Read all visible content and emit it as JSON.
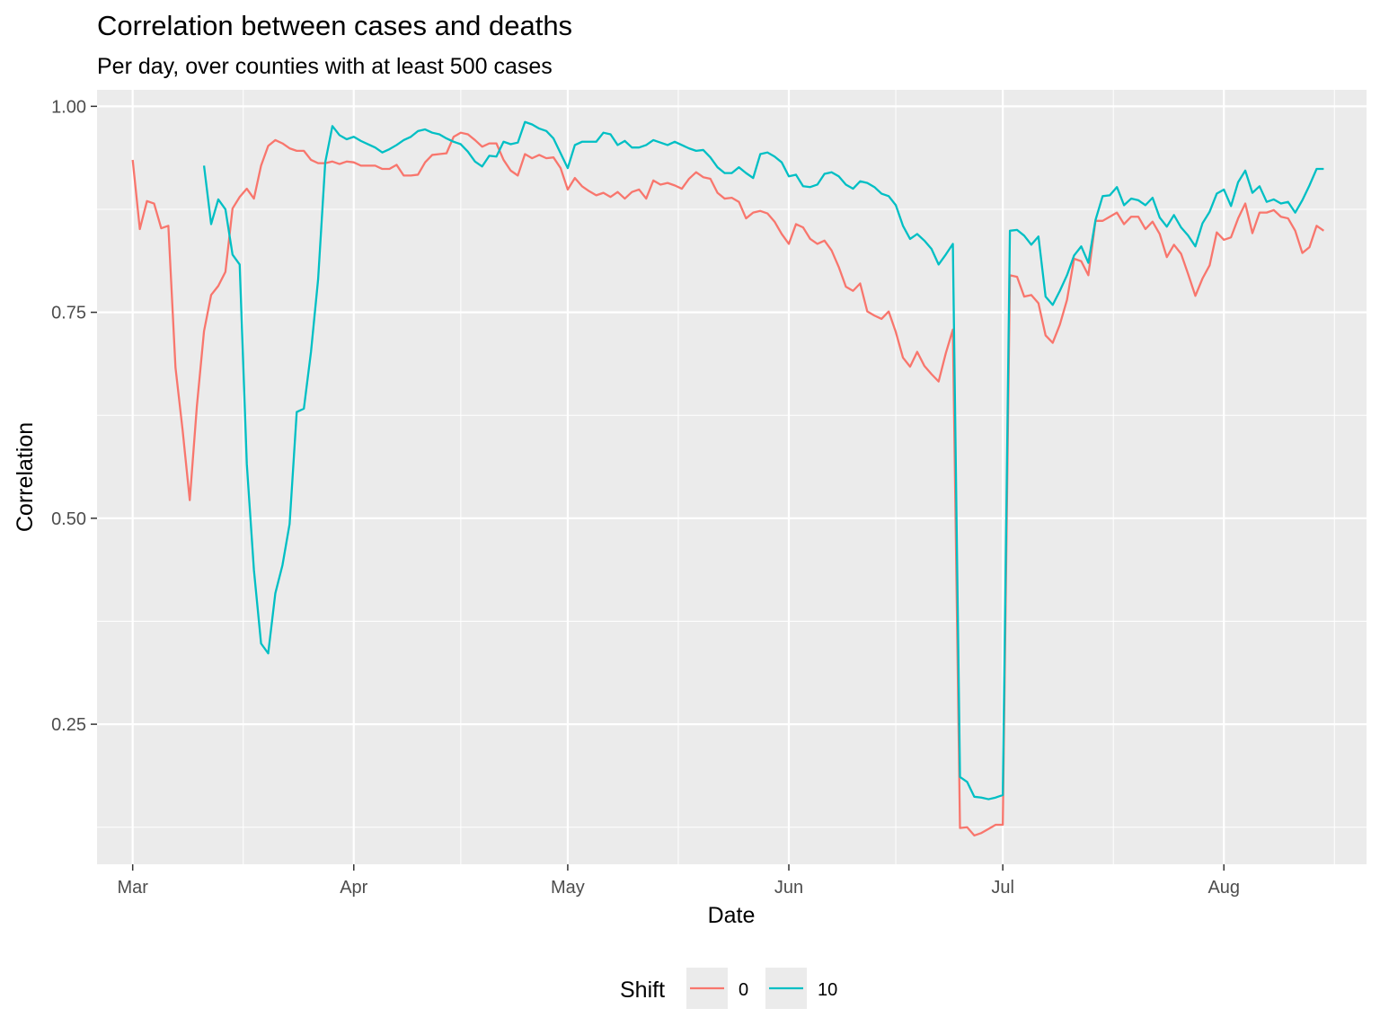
{
  "chart_data": {
    "type": "line",
    "title": "Correlation between cases and deaths",
    "subtitle": "Per day, over counties with at least 500 cases",
    "xlabel": "Date",
    "ylabel": "Correlation",
    "x_ticks": [
      "Mar",
      "Apr",
      "May",
      "Jun",
      "Jul",
      "Aug"
    ],
    "x_tick_dates": [
      "2020-03-01",
      "2020-04-01",
      "2020-05-01",
      "2020-06-01",
      "2020-07-01",
      "2020-08-01"
    ],
    "xlim": [
      "2020-02-25",
      "2020-08-21"
    ],
    "y_ticks": [
      "0.25",
      "0.50",
      "0.75",
      "1.00"
    ],
    "y_tick_values": [
      0.25,
      0.5,
      0.75,
      1.0
    ],
    "ylim": [
      0.08,
      1.02
    ],
    "grid": true,
    "legend": {
      "title": "Shift",
      "position": "bottom"
    },
    "series": [
      {
        "name": "0",
        "color": "#F8766D",
        "start": "2020-03-01",
        "values": [
          0.935,
          0.851,
          0.885,
          0.882,
          0.852,
          0.855,
          0.683,
          0.607,
          0.522,
          0.636,
          0.727,
          0.771,
          0.782,
          0.799,
          0.876,
          0.89,
          0.9,
          0.888,
          0.928,
          0.952,
          0.959,
          0.955,
          0.949,
          0.946,
          0.946,
          0.935,
          0.931,
          0.931,
          0.933,
          0.93,
          0.933,
          0.932,
          0.928,
          0.928,
          0.928,
          0.924,
          0.924,
          0.929,
          0.916,
          0.916,
          0.917,
          0.932,
          0.941,
          0.942,
          0.943,
          0.963,
          0.968,
          0.966,
          0.959,
          0.951,
          0.955,
          0.955,
          0.935,
          0.922,
          0.916,
          0.942,
          0.937,
          0.941,
          0.937,
          0.938,
          0.925,
          0.899,
          0.913,
          0.903,
          0.897,
          0.892,
          0.895,
          0.89,
          0.896,
          0.888,
          0.896,
          0.899,
          0.888,
          0.91,
          0.905,
          0.907,
          0.904,
          0.9,
          0.912,
          0.92,
          0.914,
          0.912,
          0.895,
          0.888,
          0.889,
          0.884,
          0.864,
          0.871,
          0.873,
          0.87,
          0.86,
          0.845,
          0.833,
          0.857,
          0.853,
          0.839,
          0.833,
          0.837,
          0.825,
          0.805,
          0.781,
          0.776,
          0.785,
          0.751,
          0.746,
          0.742,
          0.751,
          0.726,
          0.695,
          0.684,
          0.702,
          0.685,
          0.675,
          0.666,
          0.7,
          0.729,
          0.124,
          0.125,
          0.115,
          0.118,
          0.123,
          0.128,
          0.128,
          0.795,
          0.793,
          0.769,
          0.771,
          0.761,
          0.722,
          0.713,
          0.735,
          0.765,
          0.815,
          0.812,
          0.795,
          0.861,
          0.861,
          0.866,
          0.871,
          0.857,
          0.866,
          0.866,
          0.851,
          0.86,
          0.845,
          0.817,
          0.832,
          0.821,
          0.796,
          0.77,
          0.791,
          0.807,
          0.847,
          0.838,
          0.841,
          0.864,
          0.882,
          0.846,
          0.871,
          0.871,
          0.874,
          0.866,
          0.864,
          0.849,
          0.822,
          0.829,
          0.855,
          0.849
        ]
      },
      {
        "name": "10",
        "color": "#00BFC4",
        "start": "2020-03-11",
        "values": [
          0.928,
          0.857,
          0.887,
          0.875,
          0.82,
          0.808,
          0.566,
          0.437,
          0.348,
          0.336,
          0.409,
          0.443,
          0.493,
          0.629,
          0.633,
          0.702,
          0.79,
          0.932,
          0.976,
          0.965,
          0.96,
          0.963,
          0.958,
          0.954,
          0.95,
          0.944,
          0.948,
          0.953,
          0.959,
          0.963,
          0.97,
          0.972,
          0.968,
          0.966,
          0.961,
          0.957,
          0.954,
          0.945,
          0.933,
          0.927,
          0.94,
          0.939,
          0.957,
          0.954,
          0.956,
          0.981,
          0.978,
          0.973,
          0.97,
          0.961,
          0.943,
          0.925,
          0.953,
          0.957,
          0.957,
          0.957,
          0.968,
          0.966,
          0.953,
          0.958,
          0.95,
          0.95,
          0.953,
          0.959,
          0.956,
          0.953,
          0.957,
          0.953,
          0.949,
          0.946,
          0.947,
          0.938,
          0.926,
          0.919,
          0.919,
          0.926,
          0.919,
          0.913,
          0.942,
          0.944,
          0.939,
          0.932,
          0.915,
          0.917,
          0.903,
          0.902,
          0.905,
          0.918,
          0.92,
          0.915,
          0.905,
          0.9,
          0.909,
          0.907,
          0.902,
          0.894,
          0.891,
          0.88,
          0.855,
          0.839,
          0.845,
          0.837,
          0.827,
          0.808,
          0.82,
          0.833,
          0.186,
          0.18,
          0.162,
          0.161,
          0.159,
          0.161,
          0.164,
          0.849,
          0.85,
          0.843,
          0.832,
          0.842,
          0.769,
          0.759,
          0.776,
          0.795,
          0.819,
          0.83,
          0.81,
          0.862,
          0.891,
          0.892,
          0.902,
          0.88,
          0.888,
          0.886,
          0.88,
          0.889,
          0.865,
          0.854,
          0.868,
          0.853,
          0.843,
          0.83,
          0.858,
          0.872,
          0.894,
          0.899,
          0.879,
          0.908,
          0.922,
          0.895,
          0.903,
          0.884,
          0.887,
          0.882,
          0.884,
          0.871,
          0.886,
          0.904,
          0.924,
          0.924
        ]
      }
    ]
  }
}
